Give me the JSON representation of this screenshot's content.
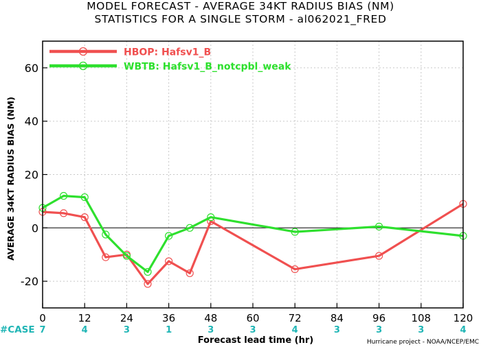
{
  "chart_data": {
    "type": "line",
    "title": "MODEL FORECAST - AVERAGE 34KT RADIUS BIAS (NM)",
    "subtitle": "STATISTICS FOR A SINGLE STORM - al062021_FRED",
    "xlabel": "Forecast lead time (hr)",
    "ylabel": "AVERAGE 34KT RADIUS BIAS (NM)",
    "xlim": [
      0,
      120
    ],
    "ylim": [
      -30,
      70
    ],
    "x_ticks": [
      0,
      12,
      24,
      36,
      48,
      60,
      72,
      84,
      96,
      108,
      120
    ],
    "y_ticks": [
      -20,
      0,
      20,
      40,
      60
    ],
    "grid": true,
    "zero_line": true,
    "legend_position": "top-left",
    "series": [
      {
        "name": "HBOP: Hafsv1_B",
        "color": "#f05050",
        "x": [
          0,
          6,
          12,
          18,
          24,
          30,
          36,
          42,
          48,
          72,
          96,
          120
        ],
        "y": [
          6,
          5.5,
          4,
          -11,
          -10,
          -21,
          -12.5,
          -17,
          2.5,
          -15.5,
          -10.5,
          9
        ]
      },
      {
        "name": "WBTB: Hafsv1_B_notcpbl_weak",
        "color": "#2ee02e",
        "x": [
          0,
          6,
          12,
          18,
          24,
          30,
          36,
          42,
          48,
          72,
          96,
          120
        ],
        "y": [
          7.5,
          12,
          11.5,
          -2.5,
          -10.5,
          -16.5,
          -3,
          0,
          4,
          -1.5,
          0.5,
          -3
        ]
      }
    ],
    "case_label": "#CASE",
    "case_counts": [
      {
        "x": 0,
        "n": "7"
      },
      {
        "x": 12,
        "n": "4"
      },
      {
        "x": 24,
        "n": "3"
      },
      {
        "x": 36,
        "n": "1"
      },
      {
        "x": 48,
        "n": "3"
      },
      {
        "x": 60,
        "n": "3"
      },
      {
        "x": 72,
        "n": "4"
      },
      {
        "x": 84,
        "n": "3"
      },
      {
        "x": 96,
        "n": "3"
      },
      {
        "x": 108,
        "n": "3"
      },
      {
        "x": 120,
        "n": "4"
      }
    ],
    "credit": "Hurricane project - NOAA/NCEP/EMC"
  }
}
